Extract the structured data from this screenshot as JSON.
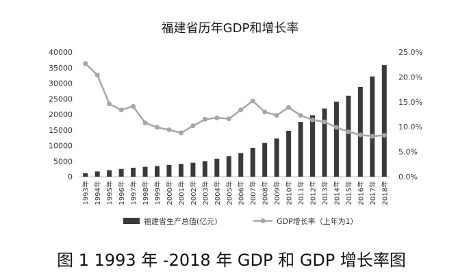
{
  "chart_data": {
    "type": "bar",
    "title": "福建省历年GDP和增长率",
    "categories": [
      "1993年",
      "1994年",
      "1995年",
      "1996年",
      "1997年",
      "1998年",
      "1999年",
      "2000年",
      "2001年",
      "2002年",
      "2003年",
      "2004年",
      "2005年",
      "2006年",
      "2007年",
      "2008年",
      "2009年",
      "2010年",
      "2011年",
      "2012年",
      "2013年",
      "2014年",
      "2015年",
      "2016年",
      "2017年",
      "2018年"
    ],
    "series": [
      {
        "name": "福建省生产总值(亿元)",
        "type": "bar",
        "axis": "left",
        "color": "#3a3a3a",
        "values": [
          1114,
          1685,
          2094,
          2484,
          2871,
          3160,
          3414,
          3765,
          4073,
          4468,
          4984,
          5763,
          6555,
          7584,
          9249,
          10823,
          12237,
          14737,
          17560,
          19702,
          21868,
          24056,
          25980,
          28811,
          32182,
          35804
        ]
      },
      {
        "name": "GDP增长率（上年为1）",
        "type": "line",
        "axis": "right",
        "color": "#a6a6a6",
        "values": [
          22.7,
          20.4,
          14.6,
          13.4,
          14.1,
          10.8,
          9.9,
          9.4,
          8.8,
          10.2,
          11.5,
          11.8,
          11.6,
          13.4,
          15.2,
          13.0,
          12.3,
          13.9,
          12.3,
          11.4,
          11.0,
          9.9,
          9.0,
          8.4,
          8.1,
          8.3
        ]
      }
    ],
    "y_left": {
      "min": 0,
      "max": 40000,
      "ticks": [
        "0",
        "5000",
        "10000",
        "15000",
        "20000",
        "25000",
        "30000",
        "35000",
        "40000"
      ]
    },
    "y_right": {
      "min": 0,
      "max": 25,
      "ticks": [
        "0.0%",
        "5.0%",
        "10.0%",
        "15.0%",
        "20.0%",
        "25.0%"
      ]
    },
    "grid": false,
    "legend": "bottom"
  },
  "caption": "图 1 1993 年 -2018 年 GDP 和 GDP 增长率图"
}
